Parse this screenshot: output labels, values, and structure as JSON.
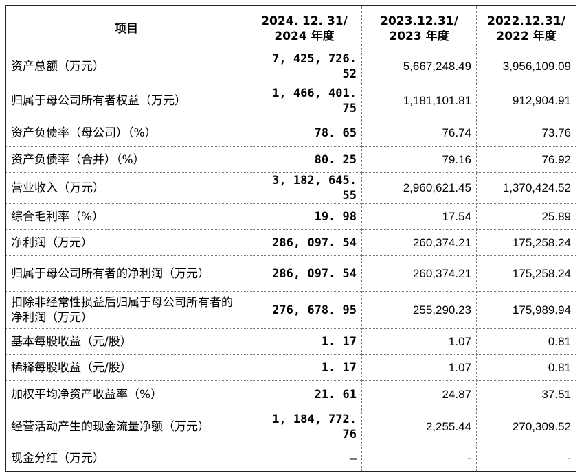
{
  "header": {
    "item": "项目",
    "col1": [
      "2024. 12. 31/",
      "2024 年度"
    ],
    "col2": [
      "2023.12.31/",
      "2023 年度"
    ],
    "col3": [
      "2022.12.31/",
      "2022 年度"
    ]
  },
  "rows": [
    {
      "label": "资产总额（万元）",
      "v2024": "7, 425, 726. 52",
      "v2023": "5,667,248.49",
      "v2022": "3,956,109.09"
    },
    {
      "label": "归属于母公司所有者权益（万元）",
      "v2024": "1, 466, 401. 75",
      "v2023": "1,181,101.81",
      "v2022": "912,904.91"
    },
    {
      "label": "资产负债率（母公司）（%）",
      "v2024": "78. 65",
      "v2023": "76.74",
      "v2022": "73.76"
    },
    {
      "label": "资产负债率（合并）（%）",
      "v2024": "80. 25",
      "v2023": "79.16",
      "v2022": "76.92"
    },
    {
      "label": "营业收入（万元）",
      "v2024": "3, 182, 645. 55",
      "v2023": "2,960,621.45",
      "v2022": "1,370,424.52"
    },
    {
      "label": "综合毛利率（%）",
      "v2024": "19. 98",
      "v2023": "17.54",
      "v2022": "25.89"
    },
    {
      "label": "净利润（万元）",
      "v2024": "286, 097. 54",
      "v2023": "260,374.21",
      "v2022": "175,258.24"
    },
    {
      "label": "归属于母公司所有者的净利润（万元）",
      "v2024": "286, 097. 54",
      "v2023": "260,374.21",
      "v2022": "175,258.24"
    },
    {
      "label": "扣除非经常性损益后归属于母公司所有者的净利润（万元）",
      "v2024": "276, 678. 95",
      "v2023": "255,290.23",
      "v2022": "175,989.94"
    },
    {
      "label": "基本每股收益（元/股）",
      "v2024": "1. 17",
      "v2023": "1.07",
      "v2022": "0.81"
    },
    {
      "label": "稀释每股收益（元/股）",
      "v2024": "1. 17",
      "v2023": "1.07",
      "v2022": "0.81"
    },
    {
      "label": "加权平均净资产收益率（%）",
      "v2024": "21. 61",
      "v2023": "24.87",
      "v2022": "37.51"
    },
    {
      "label": "经营活动产生的现金流量净额（万元）",
      "v2024": "1, 184, 772. 76",
      "v2023": "2,255.44",
      "v2022": "270,309.52"
    },
    {
      "label": "现金分红（万元）",
      "v2024": "–",
      "v2023": "-",
      "v2022": "-"
    }
  ]
}
